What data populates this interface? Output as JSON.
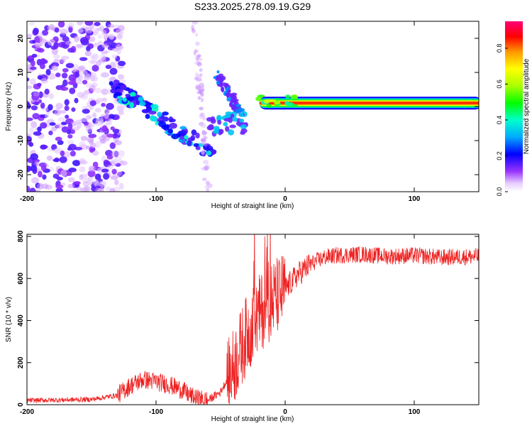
{
  "title": "S233.2025.278.09.19.G29",
  "colors": {
    "snr_line": "#ee2222",
    "axis": "#000000",
    "background": "#ffffff"
  },
  "chart_data": [
    {
      "type": "heatmap",
      "name": "spectrogram",
      "xlabel": "Height of straight line (km)",
      "ylabel": "Frequency (Hz)",
      "xlim": [
        -200,
        150
      ],
      "ylim": [
        -25,
        25
      ],
      "xticks": [
        "-200",
        "-100",
        "0",
        "100"
      ],
      "yticks": [
        "-20",
        "-10",
        "0",
        "10",
        "20"
      ],
      "colorbar": {
        "label": "Normalized spectral amplitude",
        "range": [
          0.0,
          0.95
        ],
        "ticks": [
          "0.0",
          "0.2",
          "0.4",
          "0.6",
          "0.8"
        ]
      },
      "features": {
        "noise_region_km": [
          -200,
          -135
        ],
        "diagonal_streak": {
          "x": [
            -135,
            -55
          ],
          "y": [
            6,
            -14
          ]
        },
        "steep_streaks": [
          {
            "x": [
              -52,
              -35
            ],
            "y": [
              9,
              -2
            ]
          },
          {
            "x": [
              -70,
              -60
            ],
            "y": [
              25,
              -25
            ]
          }
        ],
        "steady_tone": {
          "x": [
            -20,
            150
          ],
          "y": 1,
          "amplitude": 0.9
        }
      }
    },
    {
      "type": "line",
      "name": "snr",
      "xlabel": "Height of straight line (km)",
      "ylabel": "SNR (10 * v/v)",
      "xlim": [
        -200,
        150
      ],
      "ylim": [
        0,
        810
      ],
      "xticks": [
        "-200",
        "-100",
        "0",
        "100"
      ],
      "yticks": [
        "0",
        "200",
        "400",
        "600",
        "800"
      ],
      "series": [
        {
          "name": "SNR",
          "envelope_x": [
            -200,
            -150,
            -130,
            -120,
            -110,
            -100,
            -90,
            -80,
            -70,
            -60,
            -50,
            -40,
            -30,
            -25,
            -20,
            -15,
            -10,
            -5,
            0,
            10,
            20,
            30,
            40,
            60,
            80,
            100,
            120,
            150
          ],
          "envelope_y": [
            20,
            25,
            45,
            90,
            120,
            110,
            95,
            70,
            30,
            20,
            60,
            180,
            330,
            380,
            430,
            470,
            500,
            520,
            550,
            620,
            670,
            700,
            710,
            715,
            705,
            710,
            700,
            705
          ]
        }
      ]
    }
  ]
}
